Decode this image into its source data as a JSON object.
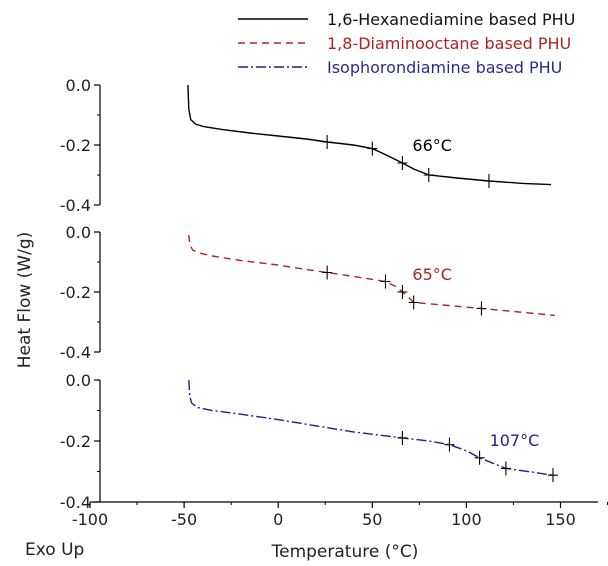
{
  "chart_data": {
    "type": "line",
    "xlabel": "Temperature (°C)",
    "ylabel": "Heat Flow (W/g)",
    "corner_label": "Exo Up",
    "xlim": [
      -100,
      180
    ],
    "x_ticks": [
      "-100",
      "-50",
      "0",
      "50",
      "100",
      "150"
    ],
    "x_tick_values": [
      -100,
      -50,
      0,
      50,
      100,
      150
    ],
    "panels": [
      {
        "series_index": 0,
        "ylim": [
          -0.4,
          0.0
        ],
        "y_ticks": [
          "0.0",
          "-0.2",
          "-0.4"
        ],
        "y_tick_values": [
          0.0,
          -0.2,
          -0.4
        ]
      },
      {
        "series_index": 1,
        "ylim": [
          -0.4,
          0.0
        ],
        "y_ticks": [
          "0.0",
          "-0.2",
          "-0.4"
        ],
        "y_tick_values": [
          0.0,
          -0.2,
          -0.4
        ]
      },
      {
        "series_index": 2,
        "ylim": [
          -0.4,
          0.0
        ],
        "y_ticks": [
          "0.0",
          "-0.2",
          "-0.4"
        ],
        "y_tick_values": [
          0.0,
          -0.2,
          -0.4
        ]
      }
    ],
    "series": [
      {
        "name": "1,6-Hexanediamine based PHU",
        "color": "#000000",
        "dash": "solid",
        "annotation": "66°C",
        "annotation_point": [
          66,
          -0.26
        ],
        "points": [
          [
            -48,
            0.0
          ],
          [
            -47.5,
            -0.08
          ],
          [
            -46.5,
            -0.115
          ],
          [
            -44,
            -0.13
          ],
          [
            -40,
            -0.138
          ],
          [
            -30,
            -0.148
          ],
          [
            -15,
            -0.16
          ],
          [
            0,
            -0.17
          ],
          [
            15,
            -0.18
          ],
          [
            26,
            -0.19
          ],
          [
            40,
            -0.2
          ],
          [
            50,
            -0.212
          ],
          [
            58,
            -0.235
          ],
          [
            66,
            -0.26
          ],
          [
            72,
            -0.28
          ],
          [
            80,
            -0.3
          ],
          [
            95,
            -0.31
          ],
          [
            112,
            -0.32
          ],
          [
            130,
            -0.328
          ],
          [
            145,
            -0.332
          ]
        ],
        "markers": [
          [
            26,
            -0.19
          ],
          [
            50,
            -0.212
          ],
          [
            66,
            -0.26
          ],
          [
            80,
            -0.3
          ],
          [
            112,
            -0.32
          ]
        ]
      },
      {
        "name": "1,8-Diaminooctane based PHU",
        "color": "#b22222",
        "dash": "dashed",
        "annotation": "65°C",
        "annotation_point": [
          66,
          -0.2
        ],
        "points": [
          [
            -47.5,
            -0.01
          ],
          [
            -47,
            -0.04
          ],
          [
            -45.5,
            -0.06
          ],
          [
            -42,
            -0.07
          ],
          [
            -35,
            -0.08
          ],
          [
            -20,
            -0.095
          ],
          [
            0,
            -0.11
          ],
          [
            15,
            -0.125
          ],
          [
            26,
            -0.135
          ],
          [
            40,
            -0.148
          ],
          [
            57,
            -0.165
          ],
          [
            62,
            -0.18
          ],
          [
            66,
            -0.2
          ],
          [
            70,
            -0.222
          ],
          [
            72,
            -0.235
          ],
          [
            85,
            -0.242
          ],
          [
            108,
            -0.255
          ],
          [
            130,
            -0.268
          ],
          [
            147,
            -0.278
          ]
        ],
        "markers": [
          [
            26,
            -0.135
          ],
          [
            57,
            -0.165
          ],
          [
            66,
            -0.2
          ],
          [
            72,
            -0.235
          ],
          [
            108,
            -0.255
          ]
        ]
      },
      {
        "name": "Isophorondiamine based PHU",
        "color": "#1f1f8f",
        "dash": "dashdot",
        "annotation": "107°C",
        "annotation_point": [
          107,
          -0.255
        ],
        "points": [
          [
            -47.5,
            0.0
          ],
          [
            -47,
            -0.05
          ],
          [
            -46,
            -0.075
          ],
          [
            -43,
            -0.09
          ],
          [
            -35,
            -0.1
          ],
          [
            -20,
            -0.112
          ],
          [
            0,
            -0.13
          ],
          [
            20,
            -0.15
          ],
          [
            40,
            -0.17
          ],
          [
            66,
            -0.19
          ],
          [
            80,
            -0.2
          ],
          [
            91,
            -0.212
          ],
          [
            100,
            -0.232
          ],
          [
            107,
            -0.255
          ],
          [
            115,
            -0.275
          ],
          [
            121,
            -0.29
          ],
          [
            135,
            -0.302
          ],
          [
            146,
            -0.312
          ]
        ],
        "markers": [
          [
            66,
            -0.19
          ],
          [
            91,
            -0.212
          ],
          [
            107,
            -0.255
          ],
          [
            121,
            -0.29
          ],
          [
            146,
            -0.312
          ]
        ]
      }
    ]
  }
}
